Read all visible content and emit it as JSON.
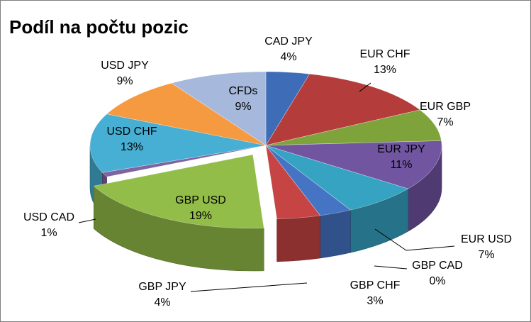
{
  "chart_data": {
    "type": "pie",
    "title": "Podíl na počtu pozic",
    "style": "3d-exploded",
    "categories": [
      "CAD JPY",
      "EUR CHF",
      "EUR GBP",
      "EUR JPY",
      "EUR USD",
      "GBP CAD",
      "GBP CHF",
      "GBP JPY",
      "GBP USD",
      "USD CAD",
      "USD CHF",
      "USD JPY",
      "CFDs"
    ],
    "values": [
      4,
      13,
      7,
      11,
      7,
      0,
      3,
      4,
      19,
      1,
      13,
      9,
      9
    ],
    "value_labels": [
      "4%",
      "13%",
      "7%",
      "11%",
      "7%",
      "0%",
      "3%",
      "4%",
      "19%",
      "1%",
      "13%",
      "9%",
      "9%"
    ],
    "colors": [
      "#3e6cb6",
      "#b43c3a",
      "#7ea33a",
      "#7155a1",
      "#36a3c2",
      "#e8792b",
      "#4574c5",
      "#c64443",
      "#93bd49",
      "#8064a2",
      "#46afd3",
      "#f59a41",
      "#a6b9dd"
    ],
    "legend": "none"
  }
}
